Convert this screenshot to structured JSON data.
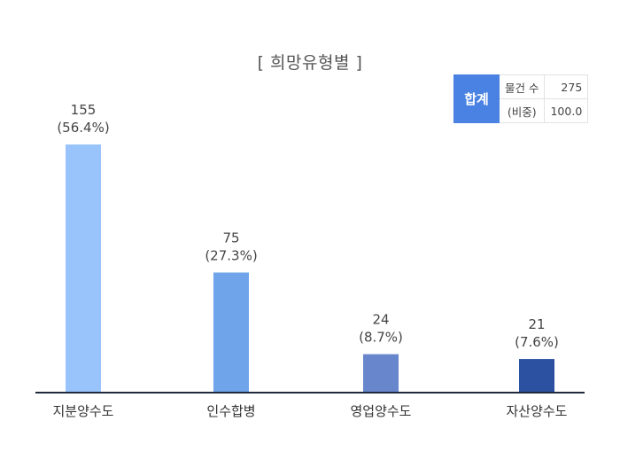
{
  "title": "[ 희망유형별 ]",
  "summary": {
    "head": "합계",
    "rows": [
      {
        "label": "물건 수",
        "value": "275"
      },
      {
        "label": "(비중)",
        "value": "100.0"
      }
    ]
  },
  "chart_data": {
    "type": "bar",
    "title": "[ 희망유형별 ]",
    "categories": [
      "지분양수도",
      "인수합병",
      "영업양수도",
      "자산양수도"
    ],
    "values": [
      155,
      75,
      24,
      21
    ],
    "value_labels": [
      "155",
      "75",
      "24",
      "21"
    ],
    "percent_labels": [
      "(56.4%)",
      "(27.3%)",
      "(8.7%)",
      "(7.6%)"
    ],
    "colors": [
      "#99c4fb",
      "#6fa3ea",
      "#6886cb",
      "#2c51a1"
    ],
    "ylim": [
      0,
      155
    ],
    "grid": false,
    "xlabel": "",
    "ylabel": ""
  }
}
